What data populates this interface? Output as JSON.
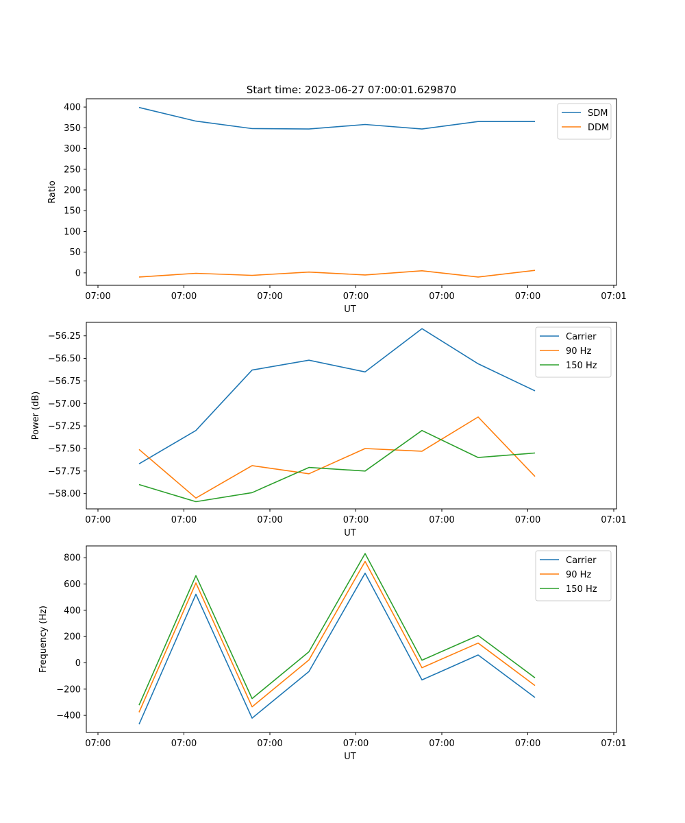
{
  "figure_title": "Start time: 2023-06-27 07:00:01.629870",
  "colors": {
    "blue": "#1f77b4",
    "orange": "#ff7f0e",
    "green": "#2ca02c"
  },
  "chart_data": [
    {
      "type": "line",
      "title": "Start time: 2023-06-27 07:00:01.629870",
      "xlabel": "UT",
      "ylabel": "Ratio",
      "x_tick_labels": [
        "07:00",
        "07:00",
        "07:00",
        "07:00",
        "07:00",
        "07:00",
        "07:00",
        "07:01"
      ],
      "y_ticks": [
        0,
        50,
        100,
        150,
        200,
        250,
        300,
        350,
        400
      ],
      "y_tick_labels": [
        "0",
        "50",
        "100",
        "150",
        "200",
        "250",
        "300",
        "350",
        "400"
      ],
      "ylim": [
        -30,
        420
      ],
      "legend_position": "top-right",
      "grid": false,
      "series": [
        {
          "name": "SDM",
          "color": "#1f77b4",
          "values": [
            399,
            366,
            348,
            347,
            358,
            347,
            365,
            365
          ]
        },
        {
          "name": "DDM",
          "color": "#ff7f0e",
          "values": [
            -10,
            -1,
            -6,
            2,
            -5,
            5,
            -10,
            6
          ]
        }
      ]
    },
    {
      "type": "line",
      "xlabel": "UT",
      "ylabel": "Power (dB)",
      "x_tick_labels": [
        "07:00",
        "07:00",
        "07:00",
        "07:00",
        "07:00",
        "07:00",
        "07:00",
        "07:01"
      ],
      "y_ticks": [
        -58.0,
        -57.75,
        -57.5,
        -57.25,
        -57.0,
        -56.75,
        -56.5,
        -56.25
      ],
      "y_tick_labels": [
        "−58.00",
        "−57.75",
        "−57.50",
        "−57.25",
        "−57.00",
        "−56.75",
        "−56.50",
        "−56.25"
      ],
      "ylim": [
        -58.17,
        -56.1
      ],
      "legend_position": "top-right",
      "grid": false,
      "series": [
        {
          "name": "Carrier",
          "color": "#1f77b4",
          "values": [
            -57.67,
            -57.3,
            -56.63,
            -56.52,
            -56.65,
            -56.17,
            -56.56,
            -56.86
          ]
        },
        {
          "name": "90 Hz",
          "color": "#ff7f0e",
          "values": [
            -57.51,
            -58.05,
            -57.69,
            -57.78,
            -57.5,
            -57.53,
            -57.15,
            -57.81
          ]
        },
        {
          "name": "150 Hz",
          "color": "#2ca02c",
          "values": [
            -57.9,
            -58.09,
            -57.99,
            -57.71,
            -57.75,
            -57.3,
            -57.6,
            -57.55
          ]
        }
      ]
    },
    {
      "type": "line",
      "xlabel": "UT",
      "ylabel": "Frequency (Hz)",
      "x_tick_labels": [
        "07:00",
        "07:00",
        "07:00",
        "07:00",
        "07:00",
        "07:00",
        "07:00",
        "07:01"
      ],
      "y_ticks": [
        -400,
        -200,
        0,
        200,
        400,
        600,
        800
      ],
      "y_tick_labels": [
        "−400",
        "−200",
        "0",
        "200",
        "400",
        "600",
        "800"
      ],
      "ylim": [
        -530,
        890
      ],
      "legend_position": "top-right",
      "grid": false,
      "series": [
        {
          "name": "Carrier",
          "color": "#1f77b4",
          "values": [
            -468,
            522,
            -421,
            -66,
            683,
            -130,
            60,
            -264
          ]
        },
        {
          "name": "90 Hz",
          "color": "#ff7f0e",
          "values": [
            -376,
            608,
            -335,
            22,
            772,
            -37,
            150,
            -173
          ]
        },
        {
          "name": "150 Hz",
          "color": "#2ca02c",
          "values": [
            -322,
            664,
            -272,
            84,
            832,
            20,
            208,
            -114
          ]
        }
      ]
    }
  ]
}
